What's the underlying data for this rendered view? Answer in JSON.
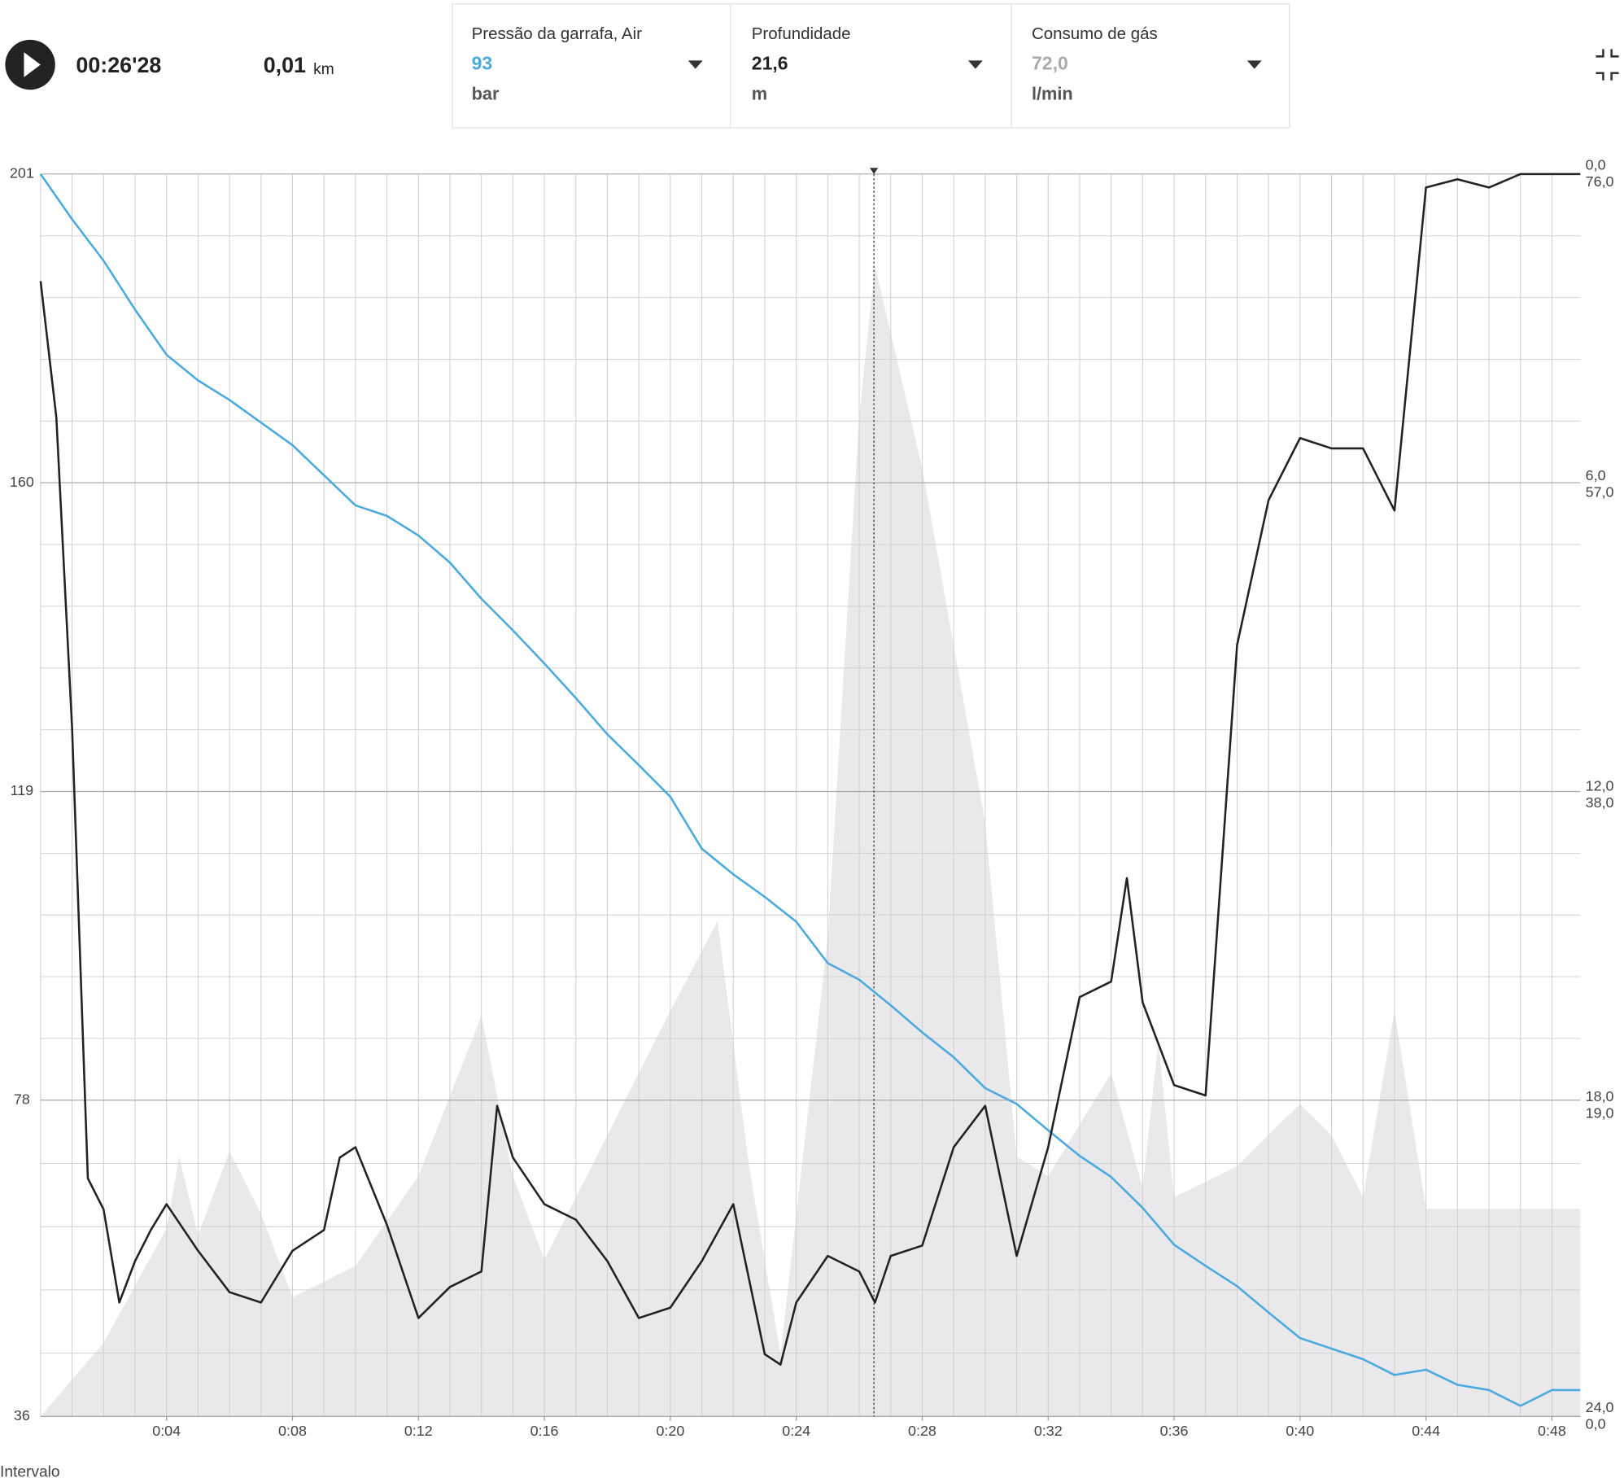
{
  "player": {
    "time": "00:26'28",
    "distance": "0,01",
    "distance_unit": "km"
  },
  "panels": [
    {
      "label": "Pressão da garrafa, Air",
      "value": "93",
      "unit": "bar"
    },
    {
      "label": "Profundidade",
      "value": "21,6",
      "unit": "m"
    },
    {
      "label": "Consumo de gás",
      "value": "72,0",
      "unit": "l/min"
    }
  ],
  "footer": "Intervalo",
  "chart_data": {
    "type": "line",
    "xlim": [
      0,
      48.9
    ],
    "xticks": [
      {
        "value": 4,
        "label": "0:04"
      },
      {
        "value": 8,
        "label": "0:08"
      },
      {
        "value": 12,
        "label": "0:12"
      },
      {
        "value": 16,
        "label": "0:16"
      },
      {
        "value": 20,
        "label": "0:20"
      },
      {
        "value": 24,
        "label": "0:24"
      },
      {
        "value": 28,
        "label": "0:28"
      },
      {
        "value": 32,
        "label": "0:32"
      },
      {
        "value": 36,
        "label": "0:36"
      },
      {
        "value": 40,
        "label": "0:40"
      },
      {
        "value": 44,
        "label": "0:44"
      },
      {
        "value": 48,
        "label": "0:48"
      }
    ],
    "ylim": [
      36,
      201
    ],
    "yticks": [
      36,
      78,
      119,
      160,
      201
    ],
    "y2lim": [
      24,
      0
    ],
    "y2ticks": [
      {
        "value": 24,
        "label": "24,0"
      },
      {
        "value": 18,
        "label": "18,0"
      },
      {
        "value": 12,
        "label": "12,0"
      },
      {
        "value": 6,
        "label": "6,0"
      },
      {
        "value": 0,
        "label": "0,0"
      }
    ],
    "y3lim": [
      0,
      76
    ],
    "y3ticks": [
      {
        "value": 0,
        "label": "0,0"
      },
      {
        "value": 19,
        "label": "19,0"
      },
      {
        "value": 38,
        "label": "38,0"
      },
      {
        "value": 57,
        "label": "57,0"
      },
      {
        "value": 76,
        "label": "76,0"
      }
    ],
    "grid": true,
    "series": [
      {
        "name": "Consumo de gás",
        "type": "area",
        "axis": "y3",
        "color": "#e9e9eb",
        "x": [
          0,
          2,
          4,
          4.4,
          5,
          6,
          7,
          8,
          10,
          12,
          14,
          15,
          16,
          18,
          20,
          21.5,
          22.5,
          23.5,
          25,
          26,
          26.5,
          28,
          30,
          31,
          32,
          34,
          35,
          35.5,
          36,
          38,
          39.3,
          40,
          41,
          42,
          43,
          44,
          48.9
        ],
        "values": [
          0,
          4.5,
          11.5,
          15.9,
          11.1,
          16.2,
          12.4,
          7.3,
          9.2,
          14.7,
          24.5,
          14.7,
          9.6,
          17.2,
          24.8,
          30.3,
          15.3,
          3.8,
          29.3,
          61.2,
          70.4,
          58,
          36.3,
          15.9,
          14.7,
          21,
          14,
          22.9,
          13.4,
          15.3,
          17.8,
          19.1,
          17.2,
          13.4,
          24.8,
          12.7,
          12.7
        ]
      },
      {
        "name": "Pressão da garrafa, Air",
        "type": "line",
        "axis": "y",
        "color": "#4aa9dd",
        "x": [
          0,
          1,
          2,
          3,
          4,
          5,
          6,
          7,
          8,
          9,
          10,
          11,
          12,
          13,
          14,
          15,
          16,
          17,
          18,
          19,
          20,
          21,
          22,
          23,
          24,
          25,
          26,
          27,
          28,
          29,
          30,
          31,
          32,
          33,
          34,
          35,
          36,
          37,
          38,
          39,
          40,
          41,
          42,
          43,
          44,
          45,
          46,
          47,
          48,
          48.9
        ],
        "values": [
          201,
          195,
          189.5,
          183,
          177,
          173.6,
          171,
          168,
          165,
          161,
          157,
          155.6,
          153,
          149.4,
          144.6,
          140.4,
          136,
          131.4,
          126.6,
          122.5,
          118.3,
          111.4,
          108,
          105,
          101.7,
          96.2,
          94,
          90.6,
          87,
          83.7,
          79.6,
          77.5,
          74,
          70.6,
          67.8,
          63.7,
          58.8,
          56,
          53.3,
          49.8,
          46.4,
          45,
          43.6,
          41.5,
          42.2,
          40.2,
          39.5,
          37.4,
          39.5,
          39.5
        ]
      },
      {
        "name": "Profundidade",
        "type": "line",
        "axis": "y2",
        "color": "#222222",
        "x": [
          0,
          0.5,
          1,
          1.5,
          2,
          2.5,
          3,
          3.5,
          4,
          5,
          6,
          7,
          8,
          9,
          9.5,
          10,
          11,
          12,
          13,
          14,
          14.5,
          15,
          16,
          17,
          18,
          19,
          20,
          21,
          22,
          23,
          23.5,
          24,
          25,
          26,
          26.5,
          27,
          28,
          29,
          30,
          31,
          32,
          33,
          34,
          34.5,
          35,
          36,
          37,
          38,
          39,
          40,
          41,
          42,
          43,
          44,
          45,
          46,
          47,
          48.9
        ],
        "values": [
          2.07,
          4.7,
          10.7,
          19.4,
          20,
          21.8,
          21,
          20.4,
          19.9,
          20.8,
          21.6,
          21.8,
          20.8,
          20.4,
          19,
          18.8,
          20.3,
          22.1,
          21.5,
          21.2,
          18,
          19,
          19.9,
          20.2,
          21,
          22.1,
          21.9,
          21,
          19.9,
          22.8,
          23,
          21.8,
          20.9,
          21.2,
          21.8,
          20.9,
          20.7,
          18.8,
          18,
          20.9,
          18.8,
          15.9,
          15.6,
          13.6,
          16,
          17.6,
          17.8,
          9.1,
          6.3,
          5.1,
          5.3,
          5.3,
          6.5,
          0.26,
          0.1,
          0.26,
          0,
          0
        ]
      }
    ]
  }
}
